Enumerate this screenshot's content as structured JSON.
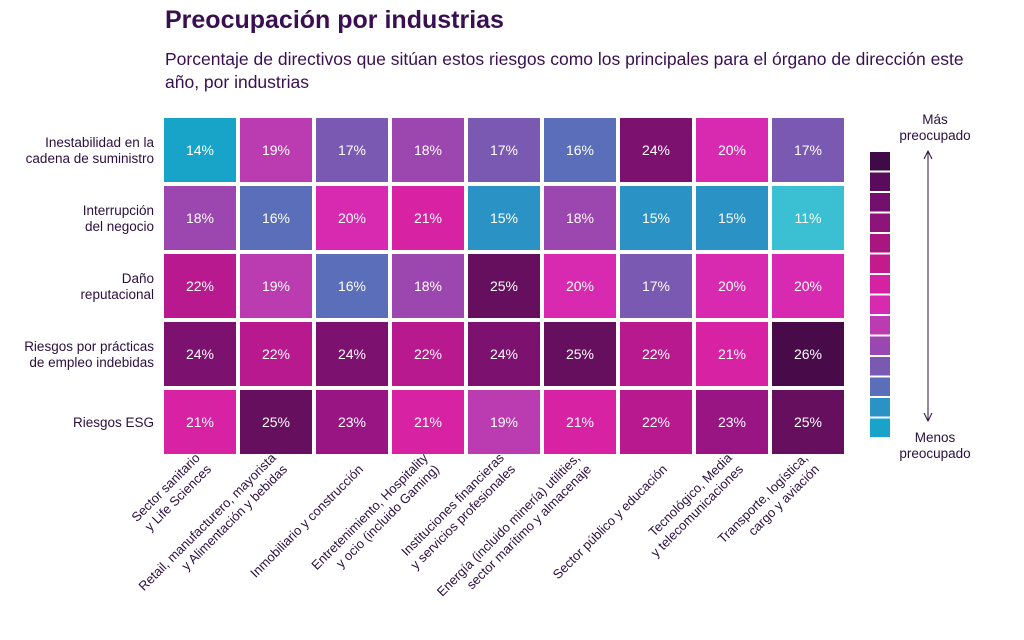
{
  "chart_data": {
    "type": "heatmap",
    "title": "Preocupación por industrias",
    "subtitle": "Porcentaje de directivos que sitúan estos riesgos como los principales para el órgano de dirección este año, por industrias",
    "rows": [
      [
        "Inestabilidad en la",
        "cadena de suministro"
      ],
      [
        "Interrupción",
        "del negocio"
      ],
      [
        "Daño",
        "reputacional"
      ],
      [
        "Riesgos por prácticas",
        "de empleo indebidas"
      ],
      [
        "Riesgos ESG"
      ]
    ],
    "columns": [
      [
        "Sector sanitario",
        "y Life Sciences"
      ],
      [
        "Retail, manufacturero, mayorista",
        "y Alimentación y bebidas"
      ],
      [
        "Inmobiliario y construcción"
      ],
      [
        "Entretenimiento, Hospitality",
        "y ocio (incluido Gaming)"
      ],
      [
        "Instituciones financieras",
        "y servicios profesionales"
      ],
      [
        "Energía (incluido minería) utilities,",
        "sector marítimo y almacenaje"
      ],
      [
        "Sector público y educación"
      ],
      [
        "Tecnológico, Media",
        "y telecomunicaciones"
      ],
      [
        "Transporte, logística,",
        "cargo y aviación"
      ]
    ],
    "values": [
      [
        14,
        19,
        17,
        18,
        17,
        16,
        24,
        20,
        17
      ],
      [
        18,
        16,
        20,
        21,
        15,
        18,
        15,
        15,
        11
      ],
      [
        22,
        19,
        16,
        18,
        25,
        20,
        17,
        20,
        20
      ],
      [
        24,
        22,
        24,
        22,
        24,
        25,
        22,
        21,
        26
      ],
      [
        21,
        25,
        23,
        21,
        19,
        21,
        22,
        23,
        25
      ]
    ],
    "value_suffix": "%",
    "legend": {
      "top_label": [
        "Más",
        "preocupado"
      ],
      "bottom_label": [
        "Menos",
        "preocupado"
      ],
      "placement": "right"
    },
    "colors": {
      "11": "#3bbfd3",
      "14": "#18a4c8",
      "15": "#2a92c4",
      "16": "#5a6eb9",
      "17": "#7a59b2",
      "18": "#9c46b0",
      "19": "#bb3cb0",
      "20": "#d72ab0",
      "21": "#d822a4",
      "22": "#b8198e",
      "23": "#9a1584",
      "24": "#7c1170",
      "25": "#650f5e",
      "26": "#480a48"
    },
    "legend_colors": [
      "#3f0b46",
      "#5a0c5c",
      "#730f6c",
      "#8d1479",
      "#a8177f",
      "#c31b8c",
      "#d521a2",
      "#d82ab1",
      "#bc3bb0",
      "#9a47b0",
      "#7a59b2",
      "#5a6eb9",
      "#2a92c4",
      "#18a4c8"
    ]
  }
}
